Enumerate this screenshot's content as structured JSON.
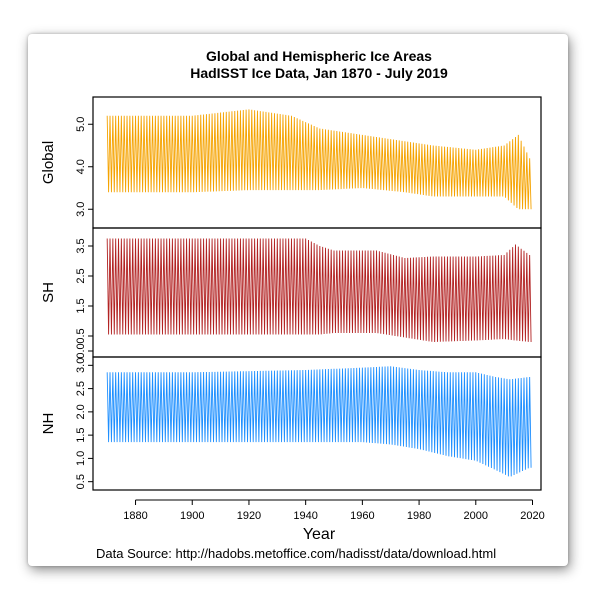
{
  "chart_data": {
    "type": "line",
    "title": "Global and Hemispheric Ice Areas",
    "subtitle": "HadISST Ice Data, Jan 1870 - July 2019",
    "xlabel": "Year",
    "x_ticks": [
      "1880",
      "1900",
      "1920",
      "1940",
      "1960",
      "1980",
      "2000",
      "2020"
    ],
    "xlim": [
      1865,
      2023
    ],
    "source": "Data Source: http://hadobs.metoffice.com/hadisst/data/download.html",
    "panels": [
      {
        "name": "Global",
        "color": "#f5a300",
        "ylim": [
          2.7,
          5.5
        ],
        "y_ticks": [
          "3.0",
          "4.0",
          "5.0"
        ],
        "envelope_years": [
          1870,
          1900,
          1920,
          1935,
          1945,
          1960,
          1975,
          1985,
          2000,
          2010,
          2015,
          2019
        ],
        "max": [
          5.2,
          5.2,
          5.35,
          5.2,
          4.9,
          4.75,
          4.6,
          4.5,
          4.4,
          4.5,
          4.75,
          4.2
        ],
        "min": [
          3.4,
          3.4,
          3.45,
          3.45,
          3.45,
          3.5,
          3.4,
          3.3,
          3.3,
          3.3,
          3.0,
          3.0
        ]
      },
      {
        "name": "SH",
        "color": "#b22222",
        "ylim": [
          0.0,
          3.9
        ],
        "y_ticks": [
          "0.0",
          "0.5",
          "1.5",
          "2.5",
          "3.5"
        ],
        "envelope_years": [
          1870,
          1940,
          1945,
          1950,
          1965,
          1975,
          1985,
          2000,
          2010,
          2014,
          2019
        ],
        "max": [
          3.75,
          3.75,
          3.5,
          3.35,
          3.35,
          3.1,
          3.15,
          3.15,
          3.2,
          3.55,
          3.2
        ],
        "min": [
          0.55,
          0.55,
          0.55,
          0.6,
          0.6,
          0.45,
          0.3,
          0.35,
          0.4,
          0.35,
          0.3
        ]
      },
      {
        "name": "NH",
        "color": "#1e8fff",
        "ylim": [
          0.45,
          3.05
        ],
        "y_ticks": [
          "0.5",
          "1.0",
          "1.5",
          "2.0",
          "2.5",
          "3.0"
        ],
        "envelope_years": [
          1870,
          1900,
          1940,
          1960,
          1970,
          1980,
          1990,
          2000,
          2007,
          2012,
          2019
        ],
        "max": [
          2.85,
          2.85,
          2.9,
          2.95,
          2.98,
          2.9,
          2.85,
          2.85,
          2.75,
          2.7,
          2.75
        ],
        "min": [
          1.35,
          1.35,
          1.35,
          1.35,
          1.3,
          1.2,
          1.05,
          0.95,
          0.75,
          0.6,
          0.8
        ]
      }
    ]
  }
}
